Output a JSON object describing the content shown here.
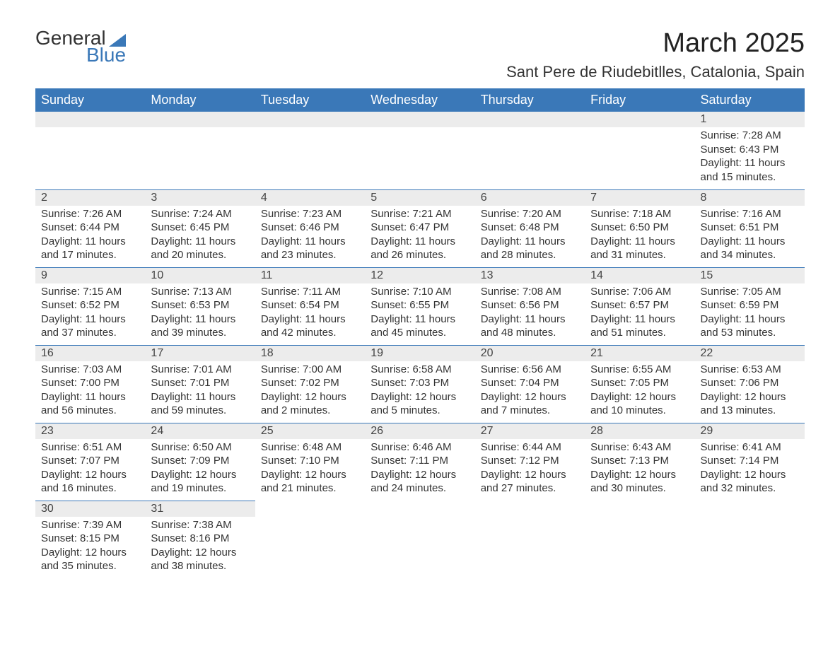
{
  "logo": {
    "text1": "General",
    "text2": "Blue"
  },
  "title": "March 2025",
  "location": "Sant Pere de Riudebitlles, Catalonia, Spain",
  "colors": {
    "header_bg": "#3a78b8",
    "header_text": "#ffffff",
    "daynum_bg": "#ececec",
    "row_border": "#3a78b8",
    "body_text": "#333333",
    "page_bg": "#ffffff"
  },
  "weekdays": [
    "Sunday",
    "Monday",
    "Tuesday",
    "Wednesday",
    "Thursday",
    "Friday",
    "Saturday"
  ],
  "weeks": [
    [
      null,
      null,
      null,
      null,
      null,
      null,
      {
        "n": "1",
        "sr": "Sunrise: 7:28 AM",
        "ss": "Sunset: 6:43 PM",
        "dl1": "Daylight: 11 hours",
        "dl2": "and 15 minutes."
      }
    ],
    [
      {
        "n": "2",
        "sr": "Sunrise: 7:26 AM",
        "ss": "Sunset: 6:44 PM",
        "dl1": "Daylight: 11 hours",
        "dl2": "and 17 minutes."
      },
      {
        "n": "3",
        "sr": "Sunrise: 7:24 AM",
        "ss": "Sunset: 6:45 PM",
        "dl1": "Daylight: 11 hours",
        "dl2": "and 20 minutes."
      },
      {
        "n": "4",
        "sr": "Sunrise: 7:23 AM",
        "ss": "Sunset: 6:46 PM",
        "dl1": "Daylight: 11 hours",
        "dl2": "and 23 minutes."
      },
      {
        "n": "5",
        "sr": "Sunrise: 7:21 AM",
        "ss": "Sunset: 6:47 PM",
        "dl1": "Daylight: 11 hours",
        "dl2": "and 26 minutes."
      },
      {
        "n": "6",
        "sr": "Sunrise: 7:20 AM",
        "ss": "Sunset: 6:48 PM",
        "dl1": "Daylight: 11 hours",
        "dl2": "and 28 minutes."
      },
      {
        "n": "7",
        "sr": "Sunrise: 7:18 AM",
        "ss": "Sunset: 6:50 PM",
        "dl1": "Daylight: 11 hours",
        "dl2": "and 31 minutes."
      },
      {
        "n": "8",
        "sr": "Sunrise: 7:16 AM",
        "ss": "Sunset: 6:51 PM",
        "dl1": "Daylight: 11 hours",
        "dl2": "and 34 minutes."
      }
    ],
    [
      {
        "n": "9",
        "sr": "Sunrise: 7:15 AM",
        "ss": "Sunset: 6:52 PM",
        "dl1": "Daylight: 11 hours",
        "dl2": "and 37 minutes."
      },
      {
        "n": "10",
        "sr": "Sunrise: 7:13 AM",
        "ss": "Sunset: 6:53 PM",
        "dl1": "Daylight: 11 hours",
        "dl2": "and 39 minutes."
      },
      {
        "n": "11",
        "sr": "Sunrise: 7:11 AM",
        "ss": "Sunset: 6:54 PM",
        "dl1": "Daylight: 11 hours",
        "dl2": "and 42 minutes."
      },
      {
        "n": "12",
        "sr": "Sunrise: 7:10 AM",
        "ss": "Sunset: 6:55 PM",
        "dl1": "Daylight: 11 hours",
        "dl2": "and 45 minutes."
      },
      {
        "n": "13",
        "sr": "Sunrise: 7:08 AM",
        "ss": "Sunset: 6:56 PM",
        "dl1": "Daylight: 11 hours",
        "dl2": "and 48 minutes."
      },
      {
        "n": "14",
        "sr": "Sunrise: 7:06 AM",
        "ss": "Sunset: 6:57 PM",
        "dl1": "Daylight: 11 hours",
        "dl2": "and 51 minutes."
      },
      {
        "n": "15",
        "sr": "Sunrise: 7:05 AM",
        "ss": "Sunset: 6:59 PM",
        "dl1": "Daylight: 11 hours",
        "dl2": "and 53 minutes."
      }
    ],
    [
      {
        "n": "16",
        "sr": "Sunrise: 7:03 AM",
        "ss": "Sunset: 7:00 PM",
        "dl1": "Daylight: 11 hours",
        "dl2": "and 56 minutes."
      },
      {
        "n": "17",
        "sr": "Sunrise: 7:01 AM",
        "ss": "Sunset: 7:01 PM",
        "dl1": "Daylight: 11 hours",
        "dl2": "and 59 minutes."
      },
      {
        "n": "18",
        "sr": "Sunrise: 7:00 AM",
        "ss": "Sunset: 7:02 PM",
        "dl1": "Daylight: 12 hours",
        "dl2": "and 2 minutes."
      },
      {
        "n": "19",
        "sr": "Sunrise: 6:58 AM",
        "ss": "Sunset: 7:03 PM",
        "dl1": "Daylight: 12 hours",
        "dl2": "and 5 minutes."
      },
      {
        "n": "20",
        "sr": "Sunrise: 6:56 AM",
        "ss": "Sunset: 7:04 PM",
        "dl1": "Daylight: 12 hours",
        "dl2": "and 7 minutes."
      },
      {
        "n": "21",
        "sr": "Sunrise: 6:55 AM",
        "ss": "Sunset: 7:05 PM",
        "dl1": "Daylight: 12 hours",
        "dl2": "and 10 minutes."
      },
      {
        "n": "22",
        "sr": "Sunrise: 6:53 AM",
        "ss": "Sunset: 7:06 PM",
        "dl1": "Daylight: 12 hours",
        "dl2": "and 13 minutes."
      }
    ],
    [
      {
        "n": "23",
        "sr": "Sunrise: 6:51 AM",
        "ss": "Sunset: 7:07 PM",
        "dl1": "Daylight: 12 hours",
        "dl2": "and 16 minutes."
      },
      {
        "n": "24",
        "sr": "Sunrise: 6:50 AM",
        "ss": "Sunset: 7:09 PM",
        "dl1": "Daylight: 12 hours",
        "dl2": "and 19 minutes."
      },
      {
        "n": "25",
        "sr": "Sunrise: 6:48 AM",
        "ss": "Sunset: 7:10 PM",
        "dl1": "Daylight: 12 hours",
        "dl2": "and 21 minutes."
      },
      {
        "n": "26",
        "sr": "Sunrise: 6:46 AM",
        "ss": "Sunset: 7:11 PM",
        "dl1": "Daylight: 12 hours",
        "dl2": "and 24 minutes."
      },
      {
        "n": "27",
        "sr": "Sunrise: 6:44 AM",
        "ss": "Sunset: 7:12 PM",
        "dl1": "Daylight: 12 hours",
        "dl2": "and 27 minutes."
      },
      {
        "n": "28",
        "sr": "Sunrise: 6:43 AM",
        "ss": "Sunset: 7:13 PM",
        "dl1": "Daylight: 12 hours",
        "dl2": "and 30 minutes."
      },
      {
        "n": "29",
        "sr": "Sunrise: 6:41 AM",
        "ss": "Sunset: 7:14 PM",
        "dl1": "Daylight: 12 hours",
        "dl2": "and 32 minutes."
      }
    ],
    [
      {
        "n": "30",
        "sr": "Sunrise: 7:39 AM",
        "ss": "Sunset: 8:15 PM",
        "dl1": "Daylight: 12 hours",
        "dl2": "and 35 minutes."
      },
      {
        "n": "31",
        "sr": "Sunrise: 7:38 AM",
        "ss": "Sunset: 8:16 PM",
        "dl1": "Daylight: 12 hours",
        "dl2": "and 38 minutes."
      },
      null,
      null,
      null,
      null,
      null
    ]
  ]
}
